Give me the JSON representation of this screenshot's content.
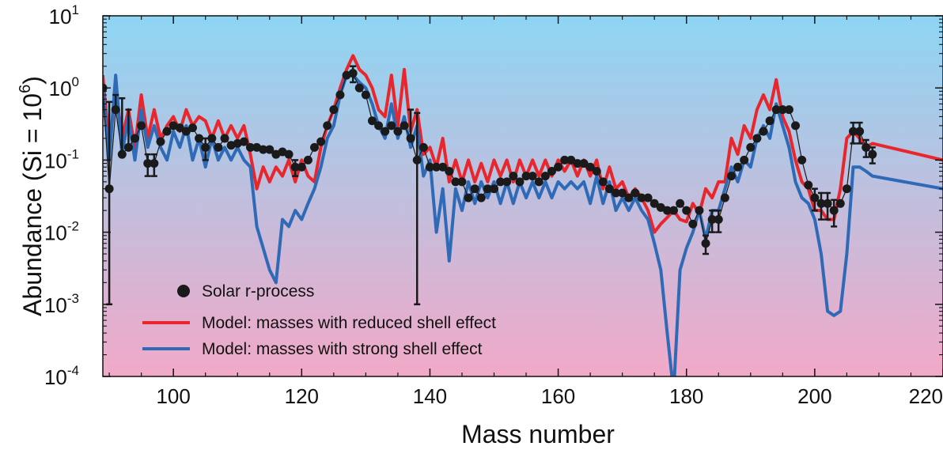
{
  "chart_data": {
    "type": "line",
    "xlabel": "Mass number",
    "ylabel": "Abundance (Si = 10",
    "ylabel_sup": "6",
    "ylabel_end": ")",
    "xlim": [
      89,
      220
    ],
    "ylim_exponent": [
      -4,
      1
    ],
    "yscale": "log",
    "x_ticks": [
      "100",
      "120",
      "140",
      "160",
      "180",
      "200",
      "220"
    ],
    "x_tick_values": [
      100,
      120,
      140,
      160,
      180,
      200,
      220
    ],
    "y_ticks": [
      {
        "exp": -4,
        "base": "10",
        "sup": "-4"
      },
      {
        "exp": -3,
        "base": "10",
        "sup": "-3"
      },
      {
        "exp": -2,
        "base": "10",
        "sup": "-2"
      },
      {
        "exp": -1,
        "base": "10",
        "sup": "-1"
      },
      {
        "exp": 0,
        "base": "10",
        "sup": "0"
      },
      {
        "exp": 1,
        "base": "10",
        "sup": "1"
      }
    ],
    "legend_position": "bottom-left",
    "background_gradient": {
      "top": "#8dd5f3",
      "bottom": "#f2a9c8"
    },
    "series": [
      {
        "name": "Model: masses with reduced shell effect",
        "color": "#e8262b",
        "x": [
          89,
          90,
          91,
          92,
          93,
          94,
          95,
          96,
          97,
          98,
          99,
          100,
          101,
          102,
          103,
          104,
          105,
          106,
          107,
          108,
          109,
          110,
          111,
          112,
          113,
          114,
          115,
          116,
          117,
          118,
          119,
          120,
          121,
          122,
          123,
          124,
          125,
          126,
          127,
          128,
          129,
          130,
          131,
          132,
          133,
          134,
          135,
          136,
          137,
          138,
          139,
          140,
          141,
          142,
          143,
          144,
          145,
          146,
          147,
          148,
          149,
          150,
          151,
          152,
          153,
          154,
          155,
          156,
          157,
          158,
          159,
          160,
          161,
          162,
          163,
          164,
          165,
          166,
          167,
          168,
          169,
          170,
          171,
          172,
          173,
          174,
          175,
          176,
          177,
          178,
          179,
          180,
          181,
          182,
          183,
          184,
          185,
          186,
          187,
          188,
          189,
          190,
          191,
          192,
          193,
          194,
          195,
          196,
          197,
          198,
          199,
          200,
          201,
          202,
          203,
          204,
          205,
          206,
          207,
          208,
          209,
          220
        ],
        "y": [
          1.5,
          0.15,
          1.0,
          0.2,
          0.5,
          0.15,
          0.8,
          0.2,
          0.5,
          0.2,
          0.3,
          0.4,
          0.25,
          0.5,
          0.3,
          0.4,
          0.35,
          0.2,
          0.35,
          0.2,
          0.3,
          0.2,
          0.3,
          0.12,
          0.04,
          0.08,
          0.05,
          0.08,
          0.06,
          0.1,
          0.05,
          0.1,
          0.06,
          0.05,
          0.15,
          0.3,
          0.5,
          1.0,
          1.8,
          2.8,
          1.8,
          1.5,
          1.0,
          0.5,
          0.4,
          1.5,
          0.3,
          1.8,
          0.25,
          0.5,
          0.12,
          0.15,
          0.08,
          0.2,
          0.05,
          0.1,
          0.05,
          0.1,
          0.05,
          0.09,
          0.05,
          0.1,
          0.06,
          0.1,
          0.05,
          0.1,
          0.06,
          0.1,
          0.06,
          0.1,
          0.06,
          0.1,
          0.07,
          0.1,
          0.06,
          0.1,
          0.06,
          0.1,
          0.04,
          0.08,
          0.04,
          0.05,
          0.03,
          0.04,
          0.03,
          0.02,
          0.01,
          0.013,
          0.016,
          0.02,
          0.015,
          0.014,
          0.025,
          0.018,
          0.04,
          0.03,
          0.05,
          0.05,
          0.2,
          0.12,
          0.3,
          0.2,
          0.5,
          0.8,
          0.5,
          1.3,
          0.4,
          0.25,
          0.1,
          0.05,
          0.04,
          0.02,
          0.02,
          0.015,
          0.015,
          0.04,
          0.2,
          0.25,
          0.2,
          0.15,
          0.17,
          0.1
        ]
      },
      {
        "name": "Model: masses with strong shell effect",
        "color": "#2e6ab6",
        "x": [
          89,
          90,
          91,
          92,
          93,
          94,
          95,
          96,
          97,
          98,
          99,
          100,
          101,
          102,
          103,
          104,
          105,
          106,
          107,
          108,
          109,
          110,
          111,
          112,
          113,
          114,
          115,
          116,
          117,
          118,
          119,
          120,
          121,
          122,
          123,
          124,
          125,
          126,
          127,
          128,
          129,
          130,
          131,
          132,
          133,
          134,
          135,
          136,
          137,
          138,
          139,
          140,
          141,
          142,
          143,
          144,
          145,
          146,
          147,
          148,
          149,
          150,
          151,
          152,
          153,
          154,
          155,
          156,
          157,
          158,
          159,
          160,
          161,
          162,
          163,
          164,
          165,
          166,
          167,
          168,
          169,
          170,
          171,
          172,
          173,
          174,
          175,
          176,
          177,
          178,
          179,
          180,
          181,
          182,
          183,
          184,
          185,
          186,
          187,
          188,
          189,
          190,
          191,
          192,
          193,
          194,
          195,
          196,
          197,
          198,
          199,
          200,
          201,
          202,
          203,
          204,
          205,
          206,
          207,
          208,
          209,
          220
        ],
        "y": [
          1.0,
          0.1,
          1.5,
          0.12,
          0.4,
          0.1,
          0.5,
          0.15,
          0.3,
          0.15,
          0.1,
          0.25,
          0.15,
          0.3,
          0.1,
          0.2,
          0.08,
          0.2,
          0.1,
          0.15,
          0.1,
          0.15,
          0.1,
          0.08,
          0.012,
          0.006,
          0.003,
          0.002,
          0.015,
          0.012,
          0.02,
          0.015,
          0.025,
          0.04,
          0.08,
          0.2,
          0.3,
          0.8,
          1.5,
          1.5,
          1.2,
          1.0,
          0.6,
          0.3,
          0.2,
          0.6,
          0.2,
          0.4,
          0.15,
          0.3,
          0.06,
          0.1,
          0.01,
          0.04,
          0.004,
          0.04,
          0.02,
          0.05,
          0.025,
          0.05,
          0.03,
          0.05,
          0.025,
          0.05,
          0.025,
          0.05,
          0.03,
          0.05,
          0.03,
          0.05,
          0.03,
          0.05,
          0.04,
          0.05,
          0.04,
          0.05,
          0.025,
          0.06,
          0.025,
          0.05,
          0.02,
          0.03,
          0.02,
          0.03,
          0.02,
          0.015,
          0.007,
          0.003,
          0.0004,
          6e-05,
          0.003,
          0.006,
          0.01,
          0.02,
          0.008,
          0.02,
          0.02,
          0.04,
          0.08,
          0.05,
          0.1,
          0.08,
          0.2,
          0.3,
          0.2,
          0.6,
          0.3,
          0.15,
          0.05,
          0.03,
          0.025,
          0.015,
          0.005,
          0.0008,
          0.0007,
          0.0008,
          0.005,
          0.08,
          0.08,
          0.07,
          0.06,
          0.04
        ]
      },
      {
        "name": "Solar r-process",
        "color": "#1a1a1a",
        "type": "scatter",
        "x": [
          89,
          90,
          91,
          92,
          93,
          94,
          95,
          96,
          97,
          98,
          99,
          100,
          101,
          102,
          103,
          104,
          105,
          106,
          107,
          108,
          109,
          110,
          111,
          112,
          113,
          114,
          115,
          116,
          117,
          118,
          119,
          120,
          121,
          122,
          123,
          124,
          125,
          126,
          127,
          128,
          129,
          130,
          131,
          132,
          133,
          134,
          135,
          136,
          137,
          138,
          139,
          140,
          141,
          142,
          143,
          144,
          145,
          146,
          147,
          148,
          149,
          150,
          151,
          152,
          153,
          154,
          155,
          156,
          157,
          158,
          159,
          160,
          161,
          162,
          163,
          164,
          165,
          166,
          167,
          168,
          169,
          170,
          171,
          172,
          173,
          174,
          175,
          176,
          177,
          178,
          179,
          180,
          181,
          182,
          183,
          184,
          185,
          186,
          187,
          188,
          189,
          190,
          191,
          192,
          193,
          194,
          195,
          196,
          197,
          198,
          199,
          200,
          201,
          202,
          203,
          204,
          205,
          206,
          207,
          208,
          209
        ],
        "y": [
          1.0,
          0.04,
          0.5,
          0.12,
          0.15,
          0.2,
          0.3,
          0.09,
          0.09,
          0.18,
          0.25,
          0.3,
          0.28,
          0.25,
          0.28,
          0.2,
          0.15,
          0.2,
          0.15,
          0.2,
          0.16,
          0.17,
          0.18,
          0.15,
          0.15,
          0.14,
          0.14,
          0.12,
          0.13,
          0.12,
          0.08,
          0.08,
          0.1,
          0.15,
          0.18,
          0.3,
          0.5,
          0.8,
          1.5,
          1.6,
          1.0,
          0.8,
          0.35,
          0.3,
          0.25,
          0.3,
          0.25,
          0.3,
          0.2,
          0.1,
          0.15,
          0.08,
          0.08,
          0.08,
          0.07,
          0.05,
          0.05,
          0.03,
          0.04,
          0.03,
          0.04,
          0.04,
          0.05,
          0.05,
          0.06,
          0.05,
          0.06,
          0.06,
          0.05,
          0.06,
          0.07,
          0.08,
          0.1,
          0.1,
          0.09,
          0.09,
          0.08,
          0.07,
          0.05,
          0.04,
          0.035,
          0.035,
          0.03,
          0.035,
          0.03,
          0.03,
          0.025,
          0.022,
          0.02,
          0.02,
          0.025,
          0.02,
          0.013,
          0.02,
          0.007,
          0.015,
          0.015,
          0.03,
          0.06,
          0.08,
          0.1,
          0.15,
          0.2,
          0.25,
          0.35,
          0.5,
          0.5,
          0.5,
          0.3,
          0.1,
          0.045,
          0.03,
          0.025,
          0.025,
          0.02,
          0.025,
          0.04,
          0.25,
          0.25,
          0.15,
          0.12
        ],
        "yerr_low": [
          0,
          0.039,
          0,
          0,
          0,
          0,
          0,
          0.03,
          0.03,
          0,
          0,
          0,
          0,
          0,
          0,
          0,
          0.05,
          0,
          0,
          0,
          0,
          0,
          0,
          0,
          0,
          0,
          0,
          0,
          0,
          0,
          0.02,
          0,
          0,
          0,
          0,
          0,
          0,
          0,
          0,
          0.4,
          0,
          0,
          0,
          0,
          0,
          0,
          0,
          0,
          0,
          0.099,
          0,
          0,
          0,
          0,
          0,
          0,
          0,
          0,
          0,
          0,
          0,
          0,
          0,
          0,
          0,
          0,
          0,
          0,
          0,
          0,
          0,
          0,
          0,
          0,
          0,
          0,
          0,
          0,
          0,
          0,
          0,
          0,
          0,
          0,
          0,
          0,
          0,
          0,
          0,
          0,
          0,
          0,
          0,
          0,
          0.002,
          0.005,
          0.005,
          0,
          0,
          0,
          0,
          0,
          0,
          0,
          0,
          0,
          0,
          0,
          0,
          0,
          0,
          0.01,
          0.01,
          0.01,
          0.008,
          0,
          0,
          0.08,
          0.08,
          0.04,
          0.03
        ],
        "yerr_high": [
          0,
          0.6,
          0.3,
          0.6,
          0.35,
          0,
          0,
          0.03,
          0.03,
          0,
          0,
          0,
          0,
          0,
          0,
          0,
          0.05,
          0,
          0,
          0,
          0,
          0,
          0,
          0,
          0,
          0,
          0,
          0,
          0,
          0,
          0.02,
          0,
          0,
          0,
          0,
          0,
          0,
          0,
          0,
          0.4,
          0,
          0,
          0,
          0,
          0,
          0,
          0,
          0,
          0.3,
          0.35,
          0,
          0,
          0,
          0,
          0,
          0,
          0,
          0,
          0,
          0,
          0,
          0,
          0,
          0,
          0,
          0,
          0,
          0,
          0,
          0,
          0,
          0,
          0,
          0,
          0,
          0,
          0,
          0,
          0,
          0,
          0,
          0,
          0,
          0,
          0,
          0,
          0,
          0,
          0,
          0,
          0,
          0,
          0,
          0,
          0.002,
          0.005,
          0.005,
          0,
          0,
          0,
          0,
          0,
          0,
          0,
          0,
          0,
          0,
          0,
          0,
          0,
          0,
          0.01,
          0.01,
          0.01,
          0.008,
          0,
          0,
          0.08,
          0.08,
          0.04,
          0.03
        ]
      }
    ]
  },
  "legend": {
    "items": [
      {
        "label": "Solar r-process",
        "kind": "marker",
        "color": "#1a1a1a"
      },
      {
        "label": "Model: masses with reduced shell effect",
        "kind": "line",
        "color": "#e8262b"
      },
      {
        "label": "Model: masses with strong shell effect",
        "kind": "line",
        "color": "#2e6ab6"
      }
    ]
  }
}
